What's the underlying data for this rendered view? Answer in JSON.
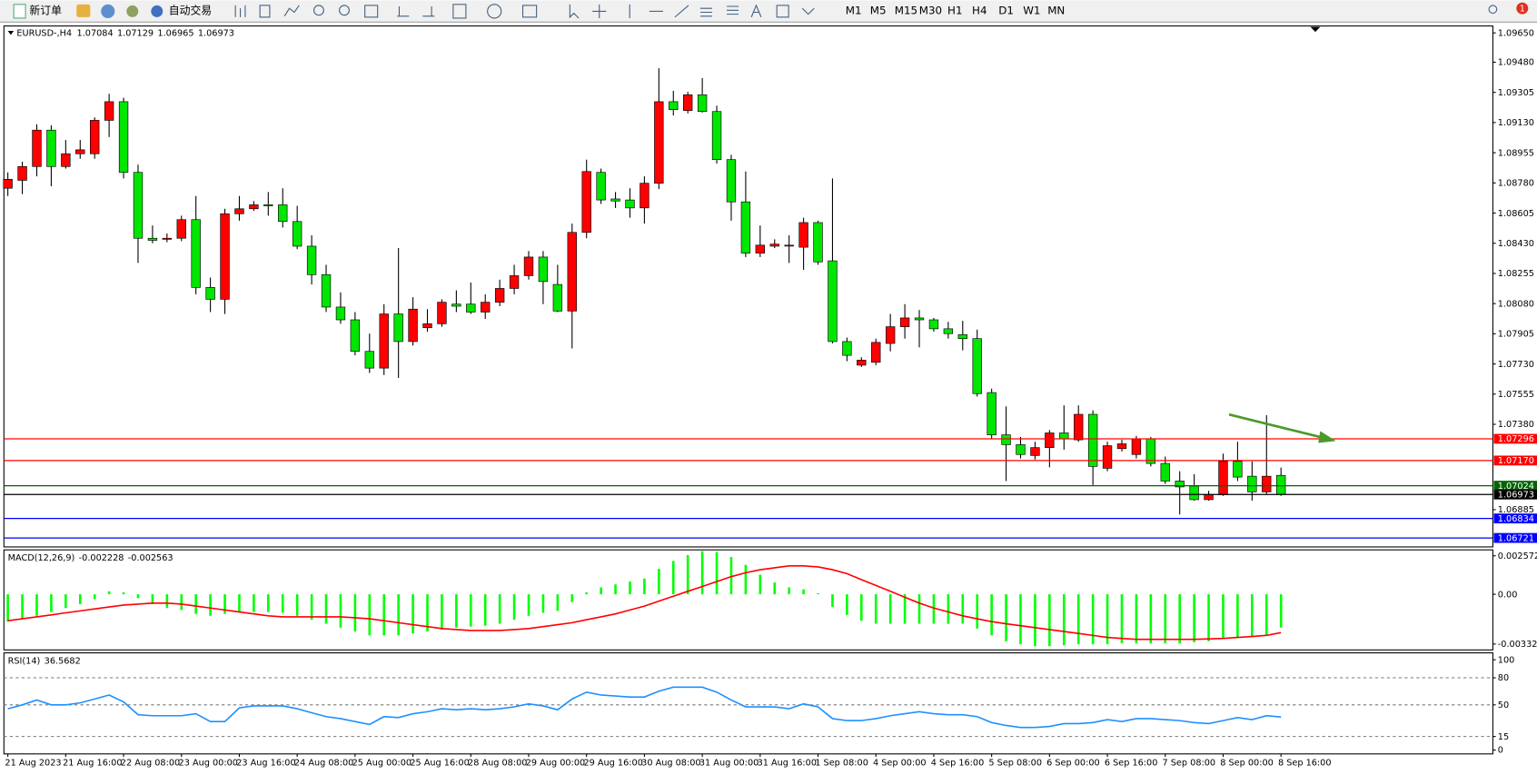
{
  "toolbar": {
    "new_order": "新订单",
    "auto_trading": "自动交易",
    "timeframes": [
      "M1",
      "M5",
      "M15",
      "M30",
      "H1",
      "H4",
      "D1",
      "W1",
      "MN"
    ],
    "badge": "1"
  },
  "chart_data": [
    {
      "type": "candlestick",
      "symbol": "EURUSD-,H4",
      "up_color": "#ff0000",
      "down_color": "#00e600",
      "categories": [
        "21 Aug 2023",
        null,
        null,
        null,
        "21 Aug 16:00",
        null,
        null,
        null,
        "22 Aug 08:00",
        null,
        null,
        null,
        "23 Aug 00:00",
        null,
        null,
        null,
        "23 Aug 16:00",
        null,
        null,
        null,
        "24 Aug 08:00",
        null,
        null,
        null,
        "25 Aug 00:00",
        null,
        null,
        null,
        "25 Aug 16:00",
        null,
        null,
        null,
        "28 Aug 08:00",
        null,
        null,
        null,
        "29 Aug 00:00",
        null,
        null,
        null,
        "29 Aug 16:00",
        null,
        null,
        null,
        "30 Aug 08:00",
        null,
        null,
        null,
        "31 Aug 00:00",
        null,
        null,
        null,
        "31 Aug 16:00",
        null,
        null,
        null,
        "1 Sep 08:00",
        null,
        null,
        null,
        "4 Sep 00:00",
        null,
        null,
        null,
        "4 Sep 16:00",
        null,
        null,
        null,
        "5 Sep 08:00",
        null,
        null,
        null,
        "6 Sep 00:00",
        null,
        null,
        null,
        "6 Sep 16:00",
        null,
        null,
        null,
        "7 Sep 08:00",
        null,
        null,
        null,
        "8 Sep 00:00",
        null,
        null,
        null,
        "8 Sep 16:00"
      ],
      "candles": {
        "open": [
          1.08749,
          1.08795,
          1.08875,
          1.09086,
          1.08875,
          1.08949,
          1.08949,
          1.09143,
          1.09251,
          1.08841,
          1.08459,
          1.08453,
          1.08459,
          1.08567,
          1.08174,
          1.08105,
          1.08601,
          1.0863,
          1.08653,
          1.08653,
          1.08556,
          1.08413,
          1.08248,
          1.0806,
          1.07986,
          1.07803,
          1.07706,
          1.0802,
          1.0786,
          1.0794,
          1.07963,
          1.08077,
          1.08077,
          1.08031,
          1.08088,
          1.08168,
          1.08242,
          1.0835,
          1.08191,
          1.08037,
          1.08493,
          1.08841,
          1.08687,
          1.08681,
          1.08635,
          1.08778,
          1.09251,
          1.092,
          1.09291,
          1.09194,
          1.08915,
          1.0867,
          1.08373,
          1.08413,
          1.08419,
          1.08407,
          1.0855,
          1.08328,
          1.0786,
          1.07723,
          1.0774,
          1.07849,
          1.07946,
          1.07997,
          1.07986,
          1.07934,
          1.079,
          1.07877,
          1.07564,
          1.07319,
          1.07262,
          1.07199,
          1.07245,
          1.0733,
          1.0729,
          1.07438,
          1.07125,
          1.07239,
          1.07205,
          1.07296,
          1.07153,
          1.07051,
          1.07022,
          1.06943,
          1.06971,
          1.07165,
          1.07079,
          1.06988,
          1.07084
        ],
        "high": [
          1.08841,
          1.08903,
          1.0912,
          1.09114,
          1.09029,
          1.09029,
          1.0916,
          1.09297,
          1.09274,
          1.08886,
          1.08533,
          1.08487,
          1.0859,
          1.08704,
          1.08231,
          1.0863,
          1.08704,
          1.08675,
          1.08727,
          1.08749,
          1.08647,
          1.08476,
          1.08305,
          1.08145,
          1.08031,
          1.07906,
          1.08077,
          1.08402,
          1.08117,
          1.08048,
          1.08105,
          1.08157,
          1.08202,
          1.08134,
          1.08219,
          1.08305,
          1.08385,
          1.08385,
          1.08305,
          1.08544,
          1.08915,
          1.08863,
          1.08727,
          1.08749,
          1.08818,
          1.09445,
          1.09314,
          1.09308,
          1.09388,
          1.09228,
          1.08943,
          1.08846,
          1.08533,
          1.08453,
          1.08476,
          1.08578,
          1.08561,
          1.08806,
          1.07883,
          1.07769,
          1.07877,
          1.0802,
          1.08077,
          1.08043,
          1.07997,
          1.07974,
          1.0798,
          1.07929,
          1.07587,
          1.07484,
          1.07307,
          1.07279,
          1.07347,
          1.0749,
          1.0749,
          1.07461,
          1.07279,
          1.0729,
          1.07313,
          1.07307,
          1.07193,
          1.07108,
          1.07091,
          1.06994,
          1.0721,
          1.07279,
          1.07165,
          1.07433,
          1.07129
        ],
        "low": [
          1.08704,
          1.08715,
          1.08818,
          1.08761,
          1.08863,
          1.0892,
          1.0892,
          1.09046,
          1.08806,
          1.08316,
          1.0843,
          1.08436,
          1.08442,
          1.08134,
          1.08031,
          1.0802,
          1.08561,
          1.08618,
          1.0859,
          1.08521,
          1.08396,
          1.08191,
          1.08031,
          1.07963,
          1.0778,
          1.07678,
          1.07666,
          1.07649,
          1.07837,
          1.07917,
          1.07946,
          1.08031,
          1.0802,
          1.07991,
          1.08065,
          1.08134,
          1.08219,
          1.08077,
          1.08031,
          1.0782,
          1.08459,
          1.08658,
          1.08635,
          1.08578,
          1.08544,
          1.08744,
          1.09171,
          1.09183,
          1.09188,
          1.08892,
          1.08561,
          1.0835,
          1.0835,
          1.08402,
          1.08316,
          1.08276,
          1.08305,
          1.07849,
          1.07746,
          1.07712,
          1.07723,
          1.07803,
          1.07877,
          1.07826,
          1.07917,
          1.07877,
          1.07809,
          1.07541,
          1.07296,
          1.07051,
          1.07182,
          1.07176,
          1.07131,
          1.07233,
          1.07279,
          1.07028,
          1.07108,
          1.07222,
          1.07182,
          1.07136,
          1.07034,
          1.06857,
          1.06937,
          1.06937,
          1.06965,
          1.07051,
          1.06937,
          1.06976,
          1.06965
        ],
        "close": [
          1.08801,
          1.08875,
          1.09086,
          1.08875,
          1.08949,
          1.08972,
          1.09143,
          1.09251,
          1.08841,
          1.08459,
          1.08447,
          1.08459,
          1.08567,
          1.08174,
          1.08105,
          1.08601,
          1.0863,
          1.08653,
          1.08647,
          1.08556,
          1.08413,
          1.08248,
          1.0806,
          1.07986,
          1.07803,
          1.07706,
          1.0802,
          1.0786,
          1.08048,
          1.07963,
          1.08088,
          1.08065,
          1.08031,
          1.08088,
          1.08168,
          1.08242,
          1.0835,
          1.08208,
          1.08037,
          1.08493,
          1.08846,
          1.08681,
          1.08675,
          1.08635,
          1.08778,
          1.09251,
          1.09205,
          1.09291,
          1.09194,
          1.08915,
          1.0867,
          1.08373,
          1.08419,
          1.08425,
          1.08419,
          1.0855,
          1.08322,
          1.0786,
          1.0778,
          1.07752,
          1.07855,
          1.07946,
          1.07997,
          1.07986,
          1.07934,
          1.07906,
          1.07877,
          1.07558,
          1.07319,
          1.07262,
          1.07205,
          1.07245,
          1.0733,
          1.07296,
          1.07438,
          1.07136,
          1.07256,
          1.07267,
          1.07296,
          1.07153,
          1.07051,
          1.07017,
          1.06943,
          1.06971,
          1.07165,
          1.07074,
          1.06988,
          1.07079,
          1.06973
        ]
      },
      "ylim": [
        1.06669,
        1.0969
      ],
      "yticks": [
        {
          "value": 1.0965,
          "label": "1.09650"
        },
        {
          "value": 1.0948,
          "label": "1.09480"
        },
        1.09305,
        {
          "value": 1.0913,
          "label": "1.09130"
        },
        1.08955,
        {
          "value": 1.0878,
          "label": "1.08780"
        },
        1.08605,
        {
          "value": 1.0843,
          "label": "1.08430"
        },
        1.08255,
        {
          "value": 1.0808,
          "label": "1.08080"
        },
        1.07905,
        {
          "value": 1.0773,
          "label": "1.07730"
        },
        1.07555,
        {
          "value": 1.0738,
          "label": "1.07380"
        },
        1.06885
      ],
      "hlines": [
        {
          "value": 1.07296,
          "color": "#ff0000"
        },
        {
          "value": 1.0717,
          "label": "1.07170",
          "color": "#ff0000"
        },
        {
          "value": 1.07024,
          "color": "#006400"
        },
        {
          "value": 1.06973,
          "color": "#000000"
        },
        {
          "value": 1.06834,
          "color": "#0000ff"
        },
        {
          "value": 1.06721,
          "color": "#0000ff"
        }
      ]
    },
    {
      "type": "macd",
      "title": "MACD(12,26,9)",
      "hist_color": "#00ff00",
      "signal_color": "#ff0000",
      "histogram": [
        -0.00183,
        -0.00164,
        -0.00144,
        -0.00118,
        -0.00092,
        -0.00066,
        -0.00033,
        0.0002,
        0.00013,
        -0.00026,
        -0.00066,
        -0.00092,
        -0.00105,
        -0.00131,
        -0.00144,
        -0.00131,
        -0.00118,
        -0.00118,
        -0.00118,
        -0.00124,
        -0.00144,
        -0.0017,
        -0.00197,
        -0.00223,
        -0.00249,
        -0.00275,
        -0.00275,
        -0.00275,
        -0.00262,
        -0.00249,
        -0.00236,
        -0.00223,
        -0.00216,
        -0.0021,
        -0.00197,
        -0.0017,
        -0.00144,
        -0.00124,
        -0.00111,
        -0.00052,
        0.00013,
        0.00046,
        0.00066,
        0.00085,
        0.00105,
        0.0017,
        0.00223,
        0.00262,
        0.00288,
        0.00282,
        0.00249,
        0.00197,
        0.00131,
        0.00079,
        0.00046,
        0.00033,
        7e-05,
        -0.00085,
        -0.00138,
        -0.00177,
        -0.00197,
        -0.00197,
        -0.00197,
        -0.00197,
        -0.00197,
        -0.00197,
        -0.00197,
        -0.00229,
        -0.00275,
        -0.00314,
        -0.00334,
        -0.00347,
        -0.00347,
        -0.00341,
        -0.00334,
        -0.00334,
        -0.00334,
        -0.00328,
        -0.00328,
        -0.00328,
        -0.00328,
        -0.00328,
        -0.00321,
        -0.00314,
        -0.00295,
        -0.00288,
        -0.00282,
        -0.00275,
        -0.002228
      ],
      "signal": [
        -0.00177,
        -0.00164,
        -0.00151,
        -0.00138,
        -0.00124,
        -0.00111,
        -0.00098,
        -0.00085,
        -0.00072,
        -0.00066,
        -0.00059,
        -0.00059,
        -0.00066,
        -0.00079,
        -0.00092,
        -0.00105,
        -0.00118,
        -0.00131,
        -0.00144,
        -0.00151,
        -0.00151,
        -0.00151,
        -0.00151,
        -0.00151,
        -0.00157,
        -0.00164,
        -0.00177,
        -0.0019,
        -0.00203,
        -0.00216,
        -0.00229,
        -0.00236,
        -0.00242,
        -0.00242,
        -0.00242,
        -0.00236,
        -0.00229,
        -0.00216,
        -0.00203,
        -0.0019,
        -0.0017,
        -0.00151,
        -0.00131,
        -0.00105,
        -0.00079,
        -0.00046,
        -0.00013,
        0.0002,
        0.00052,
        0.00085,
        0.00118,
        0.00144,
        0.00164,
        0.00177,
        0.0019,
        0.0019,
        0.00183,
        0.00164,
        0.00138,
        0.00098,
        0.00059,
        0.0002,
        -0.0002,
        -0.00059,
        -0.00092,
        -0.00118,
        -0.00144,
        -0.00164,
        -0.00183,
        -0.00197,
        -0.0021,
        -0.00223,
        -0.00236,
        -0.00249,
        -0.00262,
        -0.00275,
        -0.00288,
        -0.00295,
        -0.00301,
        -0.00301,
        -0.00301,
        -0.00301,
        -0.00301,
        -0.00298,
        -0.00295,
        -0.00288,
        -0.00282,
        -0.00275,
        -0.002563
      ],
      "ylim": [
        -0.00372,
        0.00297
      ],
      "yticks": [
        0.002572,
        {
          "value": 0,
          "label": "0.00"
        },
        -0.003326
      ]
    },
    {
      "type": "line",
      "title": "RSI(14)",
      "color": "#1e90ff",
      "values": [
        45.7,
        50.0,
        55.4,
        50.0,
        50.0,
        52.2,
        56.5,
        60.9,
        53.3,
        39.1,
        38.0,
        38.0,
        38.0,
        40.2,
        31.5,
        31.5,
        46.7,
        48.9,
        48.9,
        48.9,
        45.7,
        41.3,
        37.0,
        34.8,
        31.5,
        28.3,
        37.0,
        35.9,
        40.2,
        42.4,
        45.7,
        44.6,
        45.7,
        44.6,
        45.7,
        47.8,
        51.1,
        48.9,
        44.6,
        56.5,
        64.1,
        60.9,
        59.8,
        58.7,
        58.7,
        65.2,
        69.6,
        69.6,
        69.6,
        64.1,
        55.4,
        47.8,
        47.8,
        47.8,
        45.7,
        51.1,
        47.8,
        34.8,
        32.6,
        32.6,
        34.8,
        38.0,
        40.2,
        42.4,
        40.2,
        39.1,
        39.1,
        37.0,
        30.4,
        27.2,
        25.0,
        25.0,
        26.1,
        29.3,
        29.3,
        30.4,
        33.7,
        31.5,
        34.8,
        34.8,
        33.7,
        32.6,
        30.4,
        29.3,
        32.6,
        35.9,
        33.7,
        38.0,
        36.5682
      ],
      "ylim": [
        -4.3,
        107.6
      ],
      "yticks": [
        100,
        80,
        50,
        15,
        0
      ],
      "levels": [
        80,
        50,
        15
      ]
    }
  ]
}
